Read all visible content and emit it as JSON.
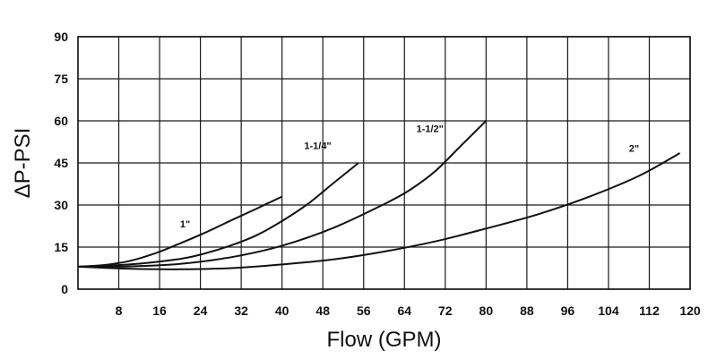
{
  "chart_data": {
    "type": "line",
    "title": "",
    "xlabel": "Flow (GPM)",
    "ylabel": "ΔP-PSI",
    "xlim": [
      0,
      120
    ],
    "ylim": [
      0,
      90
    ],
    "xticks": [
      8,
      16,
      24,
      32,
      40,
      48,
      56,
      64,
      72,
      80,
      88,
      96,
      104,
      112,
      120
    ],
    "yticks": [
      0,
      15,
      30,
      45,
      60,
      75,
      90
    ],
    "grid": true,
    "series": [
      {
        "name": "1\"",
        "label_at": [
          21,
          22
        ],
        "x": [
          0,
          5,
          10,
          15,
          20,
          25,
          30,
          35,
          40
        ],
        "y": [
          8,
          8.6,
          10,
          12.7,
          16.3,
          20.2,
          24.5,
          28.7,
          33
        ]
      },
      {
        "name": "1-1/4\"",
        "label_at": [
          47,
          50
        ],
        "x": [
          0,
          10,
          20,
          25,
          30,
          35,
          40,
          45,
          50,
          55
        ],
        "y": [
          8,
          8.8,
          10.8,
          12.8,
          15.6,
          19.2,
          24.3,
          30.3,
          37.7,
          45
        ]
      },
      {
        "name": "1-1/2\"",
        "label_at": [
          69,
          56
        ],
        "x": [
          0,
          10,
          20,
          30,
          40,
          50,
          60,
          65,
          70,
          75,
          80
        ],
        "y": [
          8,
          8.1,
          9,
          11.4,
          15.5,
          21.8,
          30.3,
          35.3,
          42,
          51,
          60
        ]
      },
      {
        "name": "2\"",
        "label_at": [
          109,
          49
        ],
        "x": [
          0,
          10,
          20,
          30,
          40,
          50,
          60,
          70,
          80,
          90,
          100,
          110,
          118
        ],
        "y": [
          8,
          7.3,
          7.1,
          7.5,
          8.8,
          10.6,
          13.4,
          17,
          21.6,
          26.6,
          32.8,
          40.4,
          48.5
        ]
      }
    ]
  }
}
